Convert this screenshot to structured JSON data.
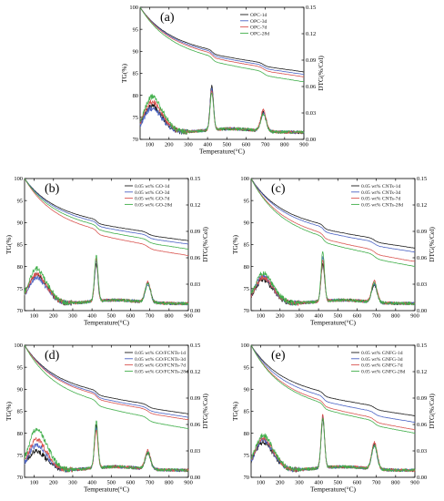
{
  "chart_data": [
    {
      "type": "line",
      "panel_label": "(a)",
      "xlabel": "Temperature(°C)",
      "ylabel": "TG(%)",
      "y2label": "DTG(%/Cel)",
      "xlim": [
        50,
        900
      ],
      "ylim": [
        70,
        100
      ],
      "y2lim": [
        0,
        0.15
      ],
      "xticks": [
        100,
        200,
        300,
        400,
        500,
        600,
        700,
        800,
        900
      ],
      "yticks": [
        70,
        75,
        80,
        85,
        90,
        95,
        100
      ],
      "y2ticks": [
        "0.00",
        "0.03",
        "0.06",
        "0.09",
        "0.12",
        "0.15"
      ],
      "legend_position": "top-right",
      "series": [
        {
          "name": "OPC-1d",
          "color": "#1a1a1a",
          "tg_end": 87.0,
          "dtg_peak_420": 0.06,
          "dtg_peak_690": 0.032,
          "dtg_peak_100": 0.036
        },
        {
          "name": "OPC-3d",
          "color": "#4a62c4",
          "tg_end": 86.5,
          "dtg_peak_420": 0.057,
          "dtg_peak_690": 0.03,
          "dtg_peak_100": 0.034
        },
        {
          "name": "OPC-7d",
          "color": "#d9534f",
          "tg_end": 86.0,
          "dtg_peak_420": 0.054,
          "dtg_peak_690": 0.034,
          "dtg_peak_100": 0.04
        },
        {
          "name": "OPC-28d",
          "color": "#3fae49",
          "tg_end": 85.0,
          "dtg_peak_420": 0.052,
          "dtg_peak_690": 0.029,
          "dtg_peak_100": 0.045
        }
      ]
    },
    {
      "type": "line",
      "panel_label": "(b)",
      "xlabel": "Temperature(°C)",
      "ylabel": "TG(%)",
      "y2label": "DTG(%/Cel)",
      "xlim": [
        50,
        900
      ],
      "ylim": [
        70,
        100
      ],
      "y2lim": [
        0,
        0.15
      ],
      "xticks": [
        100,
        200,
        300,
        400,
        500,
        600,
        700,
        800,
        900
      ],
      "yticks": [
        70,
        75,
        80,
        85,
        90,
        95,
        100
      ],
      "y2ticks": [
        "0.00",
        "0.03",
        "0.06",
        "0.09",
        "0.12",
        "0.15"
      ],
      "legend_position": "top-right",
      "series": [
        {
          "name": "0.05 wt% GO-1d",
          "color": "#1a1a1a",
          "tg_end": 87.5,
          "dtg_peak_420": 0.052,
          "dtg_peak_690": 0.032,
          "dtg_peak_100": 0.038
        },
        {
          "name": "0.05 wt% GO-3d",
          "color": "#4a62c4",
          "tg_end": 86.8,
          "dtg_peak_420": 0.055,
          "dtg_peak_690": 0.03,
          "dtg_peak_100": 0.036
        },
        {
          "name": "0.05 wt% GO-7d",
          "color": "#d9534f",
          "tg_end": 84.5,
          "dtg_peak_420": 0.058,
          "dtg_peak_690": 0.033,
          "dtg_peak_100": 0.039
        },
        {
          "name": "0.05 wt% GO-28d",
          "color": "#3fae49",
          "tg_end": 85.8,
          "dtg_peak_420": 0.062,
          "dtg_peak_690": 0.031,
          "dtg_peak_100": 0.044
        }
      ]
    },
    {
      "type": "line",
      "panel_label": "(c)",
      "xlabel": "Temperature(°C)",
      "ylabel": "TG(%)",
      "y2label": "DTG(%/Cel)",
      "xlim": [
        50,
        900
      ],
      "ylim": [
        70,
        100
      ],
      "y2lim": [
        0,
        0.15
      ],
      "xticks": [
        100,
        200,
        300,
        400,
        500,
        600,
        700,
        800,
        900
      ],
      "yticks": [
        70,
        75,
        80,
        85,
        90,
        95,
        100
      ],
      "y2ticks": [
        "0.00",
        "0.03",
        "0.06",
        "0.09",
        "0.12",
        "0.15"
      ],
      "legend_position": "top-right",
      "series": [
        {
          "name": "0.05 wt% CNTs-1d",
          "color": "#1a1a1a",
          "tg_end": 86.0,
          "dtg_peak_420": 0.052,
          "dtg_peak_690": 0.03,
          "dtg_peak_100": 0.034
        },
        {
          "name": "0.05 wt% CNTs-3d",
          "color": "#4a62c4",
          "tg_end": 85.2,
          "dtg_peak_420": 0.06,
          "dtg_peak_690": 0.031,
          "dtg_peak_100": 0.037
        },
        {
          "name": "0.05 wt% CNTs-7d",
          "color": "#d9534f",
          "tg_end": 83.3,
          "dtg_peak_420": 0.056,
          "dtg_peak_690": 0.034,
          "dtg_peak_100": 0.036
        },
        {
          "name": "0.05 wt% CNTs-28d",
          "color": "#3fae49",
          "tg_end": 82.3,
          "dtg_peak_420": 0.066,
          "dtg_peak_690": 0.032,
          "dtg_peak_100": 0.04
        }
      ]
    },
    {
      "type": "line",
      "panel_label": "(d)",
      "xlabel": "Temperature(°C)",
      "ylabel": "TG(%)",
      "y2label": "DTG(%/Cel)",
      "xlim": [
        50,
        900
      ],
      "ylim": [
        70,
        100
      ],
      "y2lim": [
        0,
        0.15
      ],
      "xticks": [
        100,
        200,
        300,
        400,
        500,
        600,
        700,
        800,
        900
      ],
      "yticks": [
        70,
        75,
        80,
        85,
        90,
        95,
        100
      ],
      "y2ticks": [
        "0.00",
        "0.03",
        "0.06",
        "0.09",
        "0.12",
        "0.15"
      ],
      "legend_position": "top-right",
      "series": [
        {
          "name": "0.05 wt% GO/FCNTs-1d",
          "color": "#1a1a1a",
          "tg_end": 86.2,
          "dtg_peak_420": 0.058,
          "dtg_peak_690": 0.028,
          "dtg_peak_100": 0.03
        },
        {
          "name": "0.05 wt% GO/FCNTs-3d",
          "color": "#4a62c4",
          "tg_end": 85.5,
          "dtg_peak_420": 0.055,
          "dtg_peak_690": 0.03,
          "dtg_peak_100": 0.035
        },
        {
          "name": "0.05 wt% GO/FCNTs-7d",
          "color": "#d9534f",
          "tg_end": 85.0,
          "dtg_peak_420": 0.052,
          "dtg_peak_690": 0.031,
          "dtg_peak_100": 0.04
        },
        {
          "name": "0.05 wt% GO/FCNTs-28d",
          "color": "#3fae49",
          "tg_end": 83.2,
          "dtg_peak_420": 0.063,
          "dtg_peak_690": 0.029,
          "dtg_peak_100": 0.05
        }
      ]
    },
    {
      "type": "line",
      "panel_label": "(e)",
      "xlabel": "Temperature(°C)",
      "ylabel": "TG(%)",
      "y2label": "DTG(%/Cel)",
      "xlim": [
        50,
        900
      ],
      "ylim": [
        70,
        100
      ],
      "y2lim": [
        0,
        0.15
      ],
      "xticks": [
        100,
        200,
        300,
        400,
        500,
        600,
        700,
        800,
        900
      ],
      "yticks": [
        70,
        75,
        80,
        85,
        90,
        95,
        100
      ],
      "y2ticks": [
        "0.00",
        "0.03",
        "0.06",
        "0.09",
        "0.12",
        "0.15"
      ],
      "legend_position": "top-right",
      "series": [
        {
          "name": "0.05 wt% GNFG-1d",
          "color": "#1a1a1a",
          "tg_end": 85.8,
          "dtg_peak_420": 0.065,
          "dtg_peak_690": 0.038,
          "dtg_peak_100": 0.038
        },
        {
          "name": "0.05 wt% GNFG-3d",
          "color": "#4a62c4",
          "tg_end": 84.5,
          "dtg_peak_420": 0.068,
          "dtg_peak_690": 0.036,
          "dtg_peak_100": 0.04
        },
        {
          "name": "0.05 wt% GNFG-7d",
          "color": "#d9534f",
          "tg_end": 83.0,
          "dtg_peak_420": 0.07,
          "dtg_peak_690": 0.04,
          "dtg_peak_100": 0.042
        },
        {
          "name": "0.05 wt% GNFG-28d",
          "color": "#3fae49",
          "tg_end": 82.3,
          "dtg_peak_420": 0.066,
          "dtg_peak_690": 0.037,
          "dtg_peak_100": 0.044
        }
      ]
    }
  ]
}
